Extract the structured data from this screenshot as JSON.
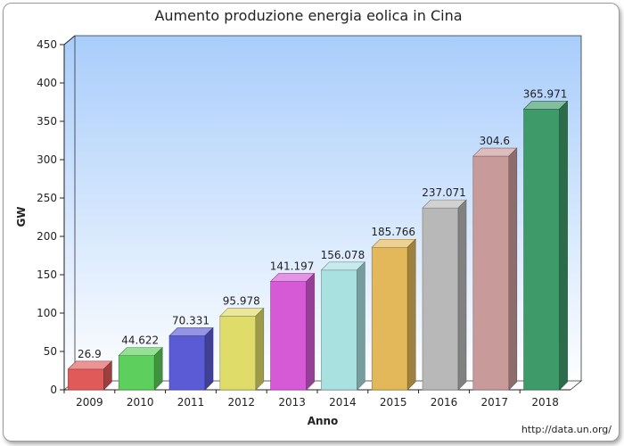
{
  "chart_data": {
    "type": "bar",
    "title": "Aumento produzione energia eolica in Cina",
    "xlabel": "Anno",
    "ylabel": "GW",
    "categories": [
      "2009",
      "2010",
      "2011",
      "2012",
      "2013",
      "2014",
      "2015",
      "2016",
      "2017",
      "2018"
    ],
    "values": [
      26.9,
      44.622,
      70.331,
      95.978,
      141.197,
      156.078,
      185.766,
      237.071,
      304.6,
      365.971
    ],
    "value_labels": [
      "26.9",
      "44.622",
      "70.331",
      "95.978",
      "141.197",
      "156.078",
      "185.766",
      "237.071",
      "304.6",
      "365.971"
    ],
    "ylim": [
      0,
      450
    ],
    "yticks": [
      0,
      50,
      100,
      150,
      200,
      250,
      300,
      350,
      400,
      450
    ],
    "grid": false,
    "legend": "none",
    "bar_colors": [
      "#e05a5a",
      "#5ccf5c",
      "#5b5bd6",
      "#e0dc6a",
      "#d65ad6",
      "#a9e0e0",
      "#e2b85a",
      "#b8b8b8",
      "#c99a9a",
      "#3f9a6a"
    ]
  },
  "source_text": "http://data.un.org/"
}
